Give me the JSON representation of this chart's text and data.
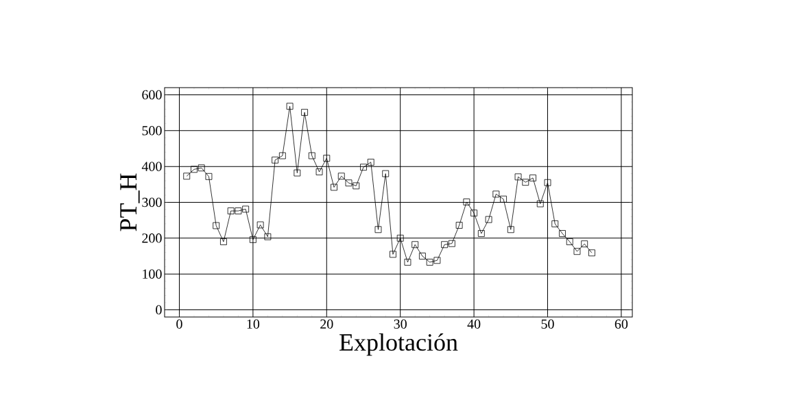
{
  "chart_data": {
    "type": "line",
    "xlabel": "Explotación",
    "ylabel": "PT_H",
    "x": [
      1,
      2,
      3,
      4,
      5,
      6,
      7,
      8,
      9,
      10,
      11,
      12,
      13,
      14,
      15,
      16,
      17,
      18,
      19,
      20,
      21,
      22,
      23,
      24,
      25,
      26,
      27,
      28,
      29,
      30,
      31,
      32,
      33,
      34,
      35,
      36,
      37,
      38,
      39,
      40,
      41,
      42,
      43,
      44,
      45,
      46,
      47,
      48,
      49,
      50,
      51,
      52,
      53,
      54,
      55,
      56
    ],
    "values": [
      373,
      392,
      396,
      372,
      235,
      190,
      276,
      276,
      281,
      196,
      237,
      204,
      418,
      430,
      568,
      382,
      551,
      430,
      385,
      423,
      342,
      373,
      354,
      346,
      398,
      412,
      224,
      380,
      155,
      200,
      133,
      182,
      150,
      133,
      138,
      182,
      185,
      236,
      301,
      270,
      213,
      252,
      323,
      309,
      224,
      371,
      356,
      368,
      296,
      355,
      240,
      213,
      190,
      163,
      184,
      159
    ],
    "color": "#000000",
    "marker": "square",
    "line_style": "solid",
    "grid": true,
    "xlim": [
      -2,
      61.5
    ],
    "ylim": [
      -20,
      620
    ],
    "xticks": [
      0,
      10,
      20,
      30,
      40,
      50,
      60
    ],
    "yticks": [
      0,
      100,
      200,
      300,
      400,
      500,
      600
    ]
  }
}
